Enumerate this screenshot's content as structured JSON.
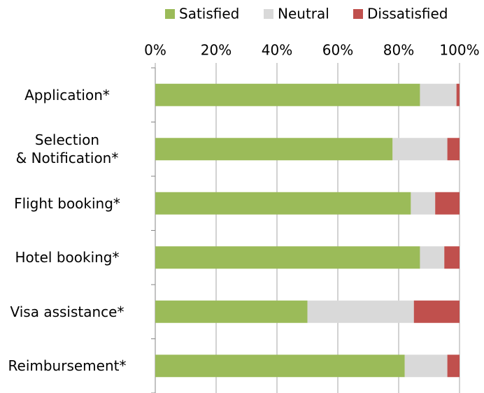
{
  "chart_data": {
    "type": "stacked_bar_horizontal",
    "categories": [
      "Application*",
      "Selection\n& Notification*",
      "Flight booking*",
      "Hotel booking*",
      "Visa assistance*",
      "Reimbursement*"
    ],
    "series": [
      {
        "name": "Satisfied",
        "color": "#9bbb59",
        "values": [
          87,
          78,
          84,
          87,
          50,
          82
        ]
      },
      {
        "name": "Neutral",
        "color": "#d9d9d9",
        "values": [
          12,
          18,
          8,
          8,
          35,
          14
        ]
      },
      {
        "name": "Dissatisfied",
        "color": "#c0504d",
        "values": [
          1,
          4,
          8,
          5,
          15,
          4
        ]
      }
    ],
    "xlim": [
      0,
      100
    ],
    "xticks": [
      {
        "value": 0,
        "label": "0%"
      },
      {
        "value": 20,
        "label": "20%"
      },
      {
        "value": 40,
        "label": "40%"
      },
      {
        "value": 60,
        "label": "60%"
      },
      {
        "value": 80,
        "label": "80%"
      },
      {
        "value": 100,
        "label": "100%"
      }
    ],
    "grid": true,
    "legend": "top"
  }
}
